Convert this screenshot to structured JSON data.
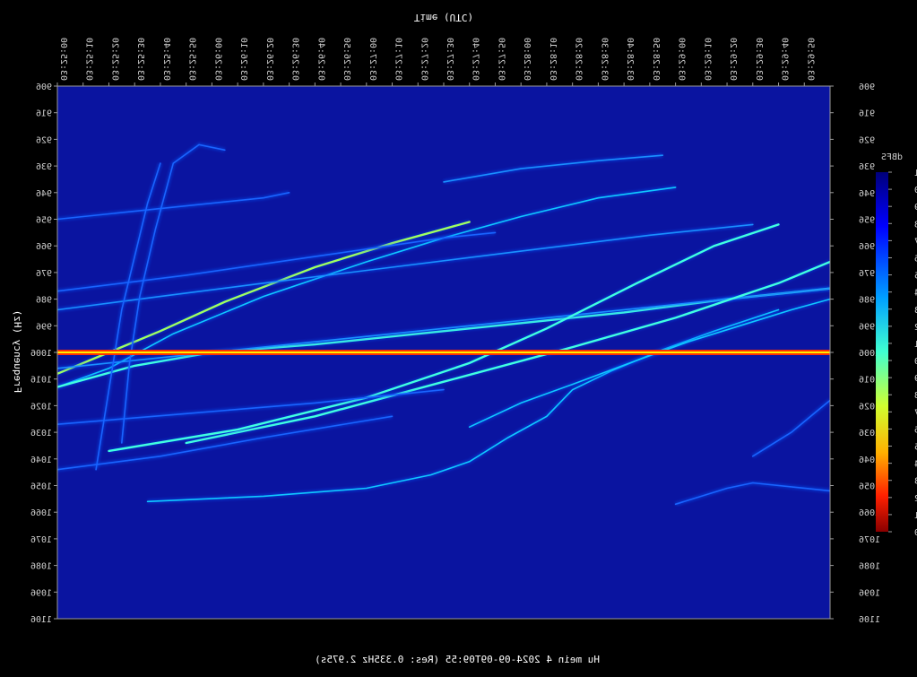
{
  "chart_data": {
    "type": "heatmap",
    "title": "",
    "xlabel": "Time (UTC)",
    "ylabel": "Frequency (Hz)",
    "caption": "Hu mein 4 2024-09-09T09:55 (Res: 0.335Hz 2.975s)",
    "x_ticks": [
      "03:25:00",
      "03:25:10",
      "03:25:20",
      "03:25:30",
      "03:25:40",
      "03:25:50",
      "03:26:00",
      "03:26:10",
      "03:26:20",
      "03:26:30",
      "03:26:40",
      "03:26:50",
      "03:27:00",
      "03:27:10",
      "03:27:20",
      "03:27:30",
      "03:27:40",
      "03:27:50",
      "03:28:00",
      "03:28:10",
      "03:28:20",
      "03:28:30",
      "03:28:40",
      "03:28:50",
      "03:29:00",
      "03:29:10",
      "03:29:20",
      "03:29:30",
      "03:29:40",
      "03:29:50"
    ],
    "y_ticks": [
      "906",
      "916",
      "926",
      "936",
      "946",
      "956",
      "966",
      "976",
      "986",
      "996",
      "1006",
      "1016",
      "1026",
      "1036",
      "1046",
      "1056",
      "1066",
      "1076",
      "1086",
      "1096",
      "1106"
    ],
    "colorbar": {
      "title": "dBFS",
      "ticks": [
        "-21",
        "-20",
        "-19",
        "-18",
        "-17",
        "-16",
        "-15",
        "-14",
        "-13",
        "-12",
        "-11",
        "-10",
        "-9",
        "-8",
        "-7",
        "-6",
        "-5",
        "-4",
        "-3",
        "-2",
        "-1",
        "-0"
      ]
    },
    "xlim": [
      0,
      300
    ],
    "ylim": [
      906,
      1106
    ],
    "background_color": "#0a14a0",
    "carrier_line": {
      "frequency": 1006,
      "color": "#ffee00"
    },
    "traces": [
      {
        "points": [
          [
            0,
            1019
          ],
          [
            20,
            1012
          ],
          [
            45,
            999
          ],
          [
            80,
            985
          ],
          [
            120,
            972
          ],
          [
            150,
            963
          ],
          [
            180,
            955
          ],
          [
            210,
            948
          ],
          [
            240,
            944
          ]
        ],
        "level": 0.55
      },
      {
        "points": [
          [
            0,
            1014
          ],
          [
            20,
            1006
          ],
          [
            40,
            998
          ],
          [
            65,
            987
          ],
          [
            100,
            974
          ],
          [
            130,
            965
          ],
          [
            160,
            957
          ]
        ],
        "level": 0.85
      },
      {
        "points": [
          [
            0,
            1019
          ],
          [
            30,
            1011
          ],
          [
            60,
            1006
          ],
          [
            100,
            1003
          ],
          [
            140,
            999
          ],
          [
            180,
            995
          ],
          [
            220,
            991
          ],
          [
            260,
            986
          ],
          [
            300,
            982
          ]
        ],
        "level": 0.7
      },
      {
        "points": [
          [
            0,
            990
          ],
          [
            40,
            985
          ],
          [
            80,
            980
          ],
          [
            130,
            974
          ],
          [
            180,
            968
          ],
          [
            230,
            962
          ],
          [
            270,
            958
          ]
        ],
        "level": 0.4
      },
      {
        "points": [
          [
            0,
            1012
          ],
          [
            40,
            1008
          ],
          [
            80,
            1004
          ],
          [
            120,
            1000
          ],
          [
            160,
            996
          ],
          [
            200,
            992
          ],
          [
            240,
            988
          ],
          [
            280,
            984
          ],
          [
            300,
            982
          ]
        ],
        "level": 0.45
      },
      {
        "points": [
          [
            0,
            956
          ],
          [
            40,
            952
          ],
          [
            80,
            948
          ],
          [
            90,
            946
          ]
        ],
        "level": 0.35
      },
      {
        "points": [
          [
            0,
            983
          ],
          [
            50,
            977
          ],
          [
            100,
            970
          ],
          [
            150,
            963
          ],
          [
            170,
            961
          ]
        ],
        "level": 0.35
      },
      {
        "points": [
          [
            50,
            1040
          ],
          [
            100,
            1030
          ],
          [
            150,
            1017
          ],
          [
            200,
            1004
          ],
          [
            240,
            993
          ],
          [
            280,
            980
          ],
          [
            300,
            972
          ]
        ],
        "level": 0.75
      },
      {
        "points": [
          [
            20,
            1043
          ],
          [
            70,
            1035
          ],
          [
            120,
            1023
          ],
          [
            160,
            1010
          ],
          [
            190,
            997
          ],
          [
            225,
            980
          ],
          [
            255,
            966
          ],
          [
            280,
            958
          ]
        ],
        "level": 0.8
      },
      {
        "points": [
          [
            35,
            1062
          ],
          [
            80,
            1060
          ],
          [
            120,
            1057
          ],
          [
            145,
            1052
          ],
          [
            160,
            1047
          ],
          [
            175,
            1038
          ],
          [
            190,
            1030
          ],
          [
            200,
            1020
          ],
          [
            215,
            1013
          ],
          [
            235,
            1005
          ],
          [
            255,
            998
          ],
          [
            280,
            990
          ]
        ],
        "level": 0.6
      },
      {
        "points": [
          [
            160,
            1034
          ],
          [
            180,
            1025
          ],
          [
            200,
            1018
          ],
          [
            225,
            1009
          ],
          [
            245,
            1002
          ],
          [
            265,
            996
          ],
          [
            285,
            990
          ],
          [
            300,
            986
          ]
        ],
        "level": 0.55
      },
      {
        "points": [
          [
            150,
            942
          ],
          [
            180,
            937
          ],
          [
            210,
            934
          ],
          [
            235,
            932
          ]
        ],
        "level": 0.45
      },
      {
        "points": [
          [
            0,
            1033
          ],
          [
            50,
            1029
          ],
          [
            100,
            1025
          ],
          [
            150,
            1020
          ]
        ],
        "level": 0.3
      },
      {
        "points": [
          [
            270,
            1045
          ],
          [
            285,
            1036
          ],
          [
            295,
            1028
          ],
          [
            300,
            1024
          ]
        ],
        "level": 0.35
      },
      {
        "points": [
          [
            240,
            1063
          ],
          [
            260,
            1057
          ],
          [
            270,
            1055
          ],
          [
            300,
            1058
          ]
        ],
        "level": 0.3
      },
      {
        "points": [
          [
            25,
            1040
          ],
          [
            28,
            1010
          ],
          [
            32,
            985
          ],
          [
            38,
            960
          ],
          [
            45,
            935
          ],
          [
            55,
            928
          ],
          [
            65,
            930
          ]
        ],
        "level": 0.3
      },
      {
        "points": [
          [
            15,
            1050
          ],
          [
            20,
            1020
          ],
          [
            25,
            990
          ],
          [
            30,
            970
          ],
          [
            35,
            950
          ],
          [
            40,
            935
          ]
        ],
        "level": 0.3
      },
      {
        "points": [
          [
            0,
            1050
          ],
          [
            40,
            1045
          ],
          [
            80,
            1038
          ],
          [
            130,
            1030
          ]
        ],
        "level": 0.25
      }
    ]
  }
}
